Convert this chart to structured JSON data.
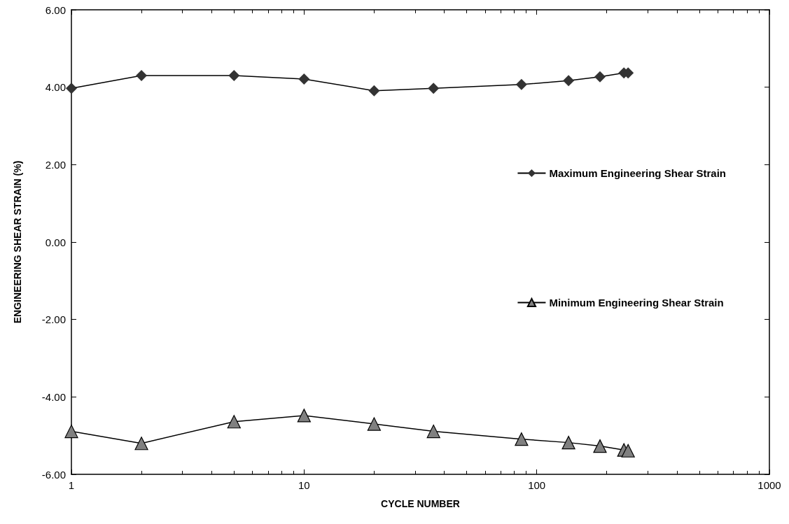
{
  "chart_data": {
    "type": "line",
    "xlabel": "CYCLE NUMBER",
    "ylabel": "ENGINEERING SHEAR STRAIN (%)",
    "x": [
      1,
      2,
      5,
      10,
      20,
      36,
      86,
      137,
      187,
      237,
      247
    ],
    "series": [
      {
        "name": "Maximum Engineering Shear Strain",
        "color": "#333333",
        "marker": "diamond",
        "values": [
          3.97,
          4.3,
          4.3,
          4.21,
          3.91,
          3.97,
          4.07,
          4.17,
          4.27,
          4.37,
          4.37
        ]
      },
      {
        "name": "Minimum Engineering Shear Strain",
        "color": "#808080",
        "marker": "triangle",
        "values": [
          -4.89,
          -5.2,
          -4.64,
          -4.48,
          -4.7,
          -4.89,
          -5.09,
          -5.18,
          -5.27,
          -5.37,
          -5.39
        ]
      }
    ],
    "log": "x",
    "xlim": [
      1,
      1000
    ],
    "xticks": [
      1,
      10,
      100,
      1000
    ],
    "ylim": [
      -6,
      6
    ],
    "yticks": [
      {
        "value": -6,
        "label": "-6.00"
      },
      {
        "value": -4,
        "label": "-4.00"
      },
      {
        "value": -2,
        "label": "-2.00"
      },
      {
        "value": 0,
        "label": "0.00"
      },
      {
        "value": 2,
        "label": "2.00"
      },
      {
        "value": 4,
        "label": "4.00"
      },
      {
        "value": 6,
        "label": "6.00"
      }
    ],
    "grid": false,
    "legend": "right",
    "line_style": "solid"
  }
}
